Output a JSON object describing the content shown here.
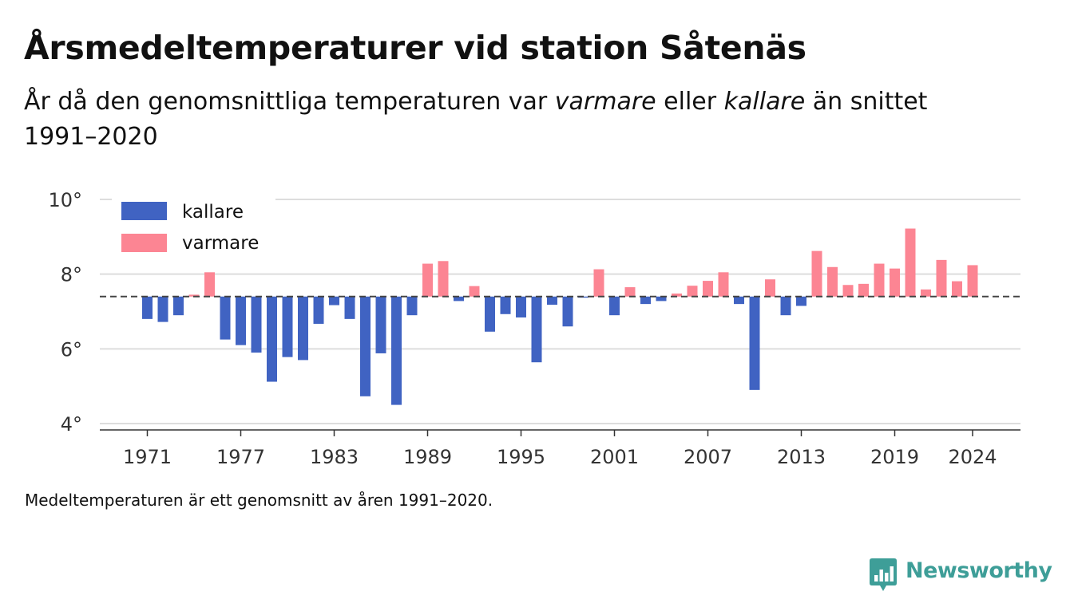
{
  "header": {
    "title": "Årsmedeltemperaturer vid station Såtenäs",
    "subtitle_parts": [
      "År då den genomsnittliga temperaturen var ",
      "varmare",
      " eller ",
      "kallare",
      " än snittet 1991–2020"
    ]
  },
  "footnote": "Medeltemperaturen är ett genomsnitt av åren 1991–2020.",
  "brand": {
    "name": "Newsworthy",
    "icon": "bar-chart-badge-icon",
    "color": "#3e9e98"
  },
  "chart_data": {
    "type": "bar",
    "baseline": 7.4,
    "ylim": [
      4,
      10
    ],
    "y_ticks": [
      4,
      6,
      8,
      10
    ],
    "y_tick_labels": [
      "4°",
      "6°",
      "8°",
      "10°"
    ],
    "x_ticks": [
      1971,
      1977,
      1983,
      1989,
      1995,
      2001,
      2007,
      2013,
      2019,
      2024
    ],
    "grid": "horizontal",
    "legend_placement": "top-left",
    "series": [
      {
        "name": "kallare",
        "color": "#4063c2"
      },
      {
        "name": "varmare",
        "color": "#fc8593"
      }
    ],
    "years": [
      1971,
      1972,
      1973,
      1974,
      1975,
      1976,
      1977,
      1978,
      1979,
      1980,
      1981,
      1982,
      1983,
      1984,
      1985,
      1986,
      1987,
      1988,
      1989,
      1990,
      1991,
      1992,
      1993,
      1994,
      1995,
      1996,
      1997,
      1998,
      1999,
      2000,
      2001,
      2002,
      2003,
      2004,
      2005,
      2006,
      2007,
      2008,
      2009,
      2010,
      2011,
      2012,
      2013,
      2014,
      2015,
      2016,
      2017,
      2018,
      2019,
      2020,
      2021,
      2022,
      2023,
      2024
    ],
    "values": [
      6.8,
      6.72,
      6.9,
      7.45,
      8.05,
      6.25,
      6.1,
      5.9,
      5.12,
      5.78,
      5.7,
      6.67,
      7.17,
      6.8,
      4.73,
      5.88,
      4.5,
      6.9,
      8.28,
      8.35,
      7.28,
      7.68,
      6.46,
      6.93,
      6.84,
      5.64,
      7.18,
      6.6,
      7.37,
      8.13,
      6.9,
      7.65,
      7.2,
      7.28,
      7.48,
      7.69,
      7.82,
      8.05,
      7.2,
      4.9,
      7.86,
      6.9,
      7.15,
      8.62,
      8.19,
      7.71,
      7.74,
      8.28,
      8.15,
      9.22,
      7.59,
      8.38,
      7.81,
      8.24
    ]
  }
}
